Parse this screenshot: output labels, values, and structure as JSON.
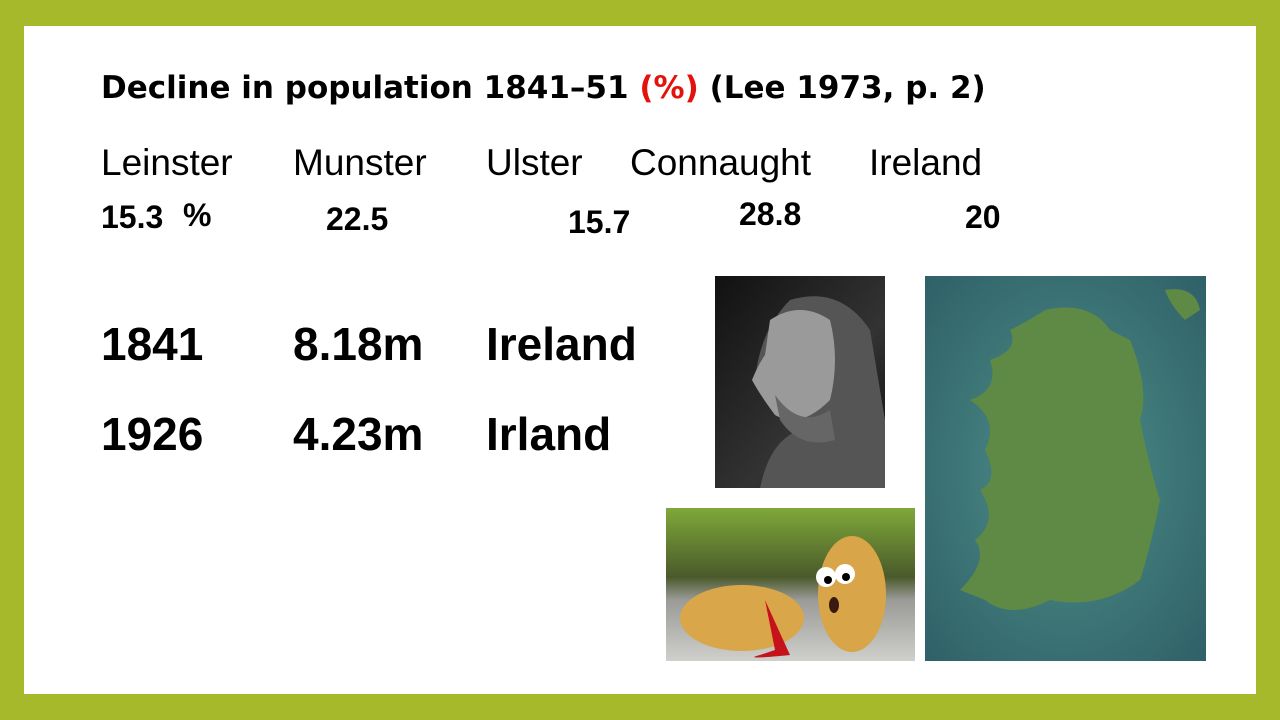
{
  "title": {
    "main": "Decline in population 1841–51",
    "unit": "(%)",
    "source": "(Lee 1973, p. 2)"
  },
  "regions": {
    "names": [
      "Leinster",
      "Munster",
      "Ulster",
      "Connaught",
      "Ireland"
    ],
    "values": [
      "15.3",
      "22.5",
      "15.7",
      "28.8",
      "20"
    ],
    "unit": "%"
  },
  "rows": [
    [
      "1841",
      "8.18m",
      "Ireland"
    ],
    [
      "1926",
      "4.23m",
      "Irland"
    ]
  ]
}
